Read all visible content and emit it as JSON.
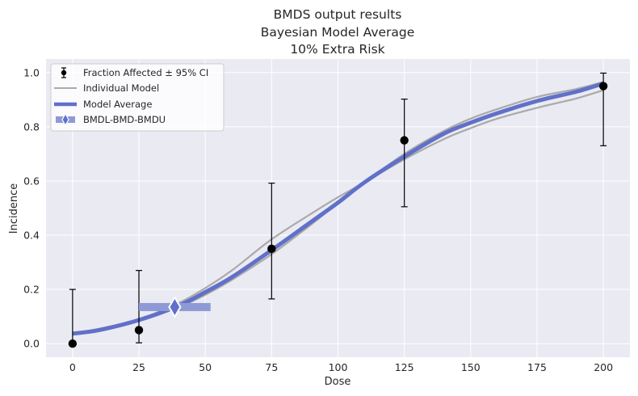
{
  "chart_data": {
    "type": "line",
    "title_lines": [
      "BMDS output results",
      "Bayesian Model Average",
      "10% Extra Risk"
    ],
    "xlabel": "Dose",
    "ylabel": "Incidence",
    "xlim": [
      -10,
      210
    ],
    "ylim": [
      -0.05,
      1.05
    ],
    "x_ticks": [
      0,
      25,
      50,
      75,
      100,
      125,
      150,
      175,
      200
    ],
    "y_ticks": [
      0.0,
      0.2,
      0.4,
      0.6,
      0.8,
      1.0
    ],
    "x_tick_labels": [
      "0",
      "25",
      "50",
      "75",
      "100",
      "125",
      "150",
      "175",
      "200"
    ],
    "y_tick_labels": [
      "0.0",
      "0.2",
      "0.4",
      "0.6",
      "0.8",
      "1.0"
    ],
    "grid": true,
    "legend_position": "top-left",
    "legend": [
      {
        "label": "Fraction Affected ± 95% CI",
        "kind": "errorbar"
      },
      {
        "label": "Individual Model",
        "kind": "line"
      },
      {
        "label": "Model Average",
        "kind": "thick-line"
      },
      {
        "label": "BMDL-BMD-BMDU",
        "kind": "bmd-marker"
      }
    ],
    "observed": [
      {
        "dose": 0,
        "fraction": 0.0,
        "ci_low": 0.0,
        "ci_high": 0.2
      },
      {
        "dose": 25,
        "fraction": 0.05,
        "ci_low": 0.003,
        "ci_high": 0.27
      },
      {
        "dose": 75,
        "fraction": 0.35,
        "ci_low": 0.165,
        "ci_high": 0.592
      },
      {
        "dose": 125,
        "fraction": 0.75,
        "ci_low": 0.505,
        "ci_high": 0.902
      },
      {
        "dose": 200,
        "fraction": 0.95,
        "ci_low": 0.73,
        "ci_high": 0.998
      }
    ],
    "individual_models": [
      {
        "x": [
          0,
          10,
          25,
          40,
          50,
          60,
          75,
          90,
          100,
          110,
          125,
          140,
          150,
          160,
          175,
          190,
          200
        ],
        "y": [
          0.04,
          0.055,
          0.09,
          0.15,
          0.205,
          0.27,
          0.385,
          0.48,
          0.54,
          0.595,
          0.68,
          0.755,
          0.795,
          0.83,
          0.87,
          0.905,
          0.935
        ]
      },
      {
        "x": [
          0,
          10,
          25,
          40,
          50,
          60,
          75,
          90,
          100,
          110,
          125,
          140,
          150,
          160,
          175,
          190,
          200
        ],
        "y": [
          0.035,
          0.048,
          0.085,
          0.135,
          0.18,
          0.235,
          0.33,
          0.44,
          0.52,
          0.595,
          0.7,
          0.785,
          0.83,
          0.865,
          0.91,
          0.94,
          0.965
        ]
      }
    ],
    "model_average": {
      "x": [
        0,
        10,
        25,
        40,
        50,
        60,
        75,
        90,
        100,
        110,
        125,
        140,
        150,
        160,
        175,
        190,
        200
      ],
      "y": [
        0.037,
        0.05,
        0.087,
        0.14,
        0.19,
        0.245,
        0.345,
        0.45,
        0.52,
        0.595,
        0.69,
        0.775,
        0.815,
        0.85,
        0.895,
        0.93,
        0.96
      ]
    },
    "bmd": {
      "bmdl": 25,
      "bmd": 38.5,
      "bmdu": 52,
      "response": 0.135
    },
    "colors": {
      "background": "#eaeaf2",
      "grid": "#ffffff",
      "observed": "#000000",
      "individual_model": "#aaaaaa",
      "model_average": "#6170c8",
      "bmd_bar": "#8e9ad6",
      "bmd_marker_fill": "#6170c8",
      "bmd_marker_edge": "#ffffff"
    }
  }
}
